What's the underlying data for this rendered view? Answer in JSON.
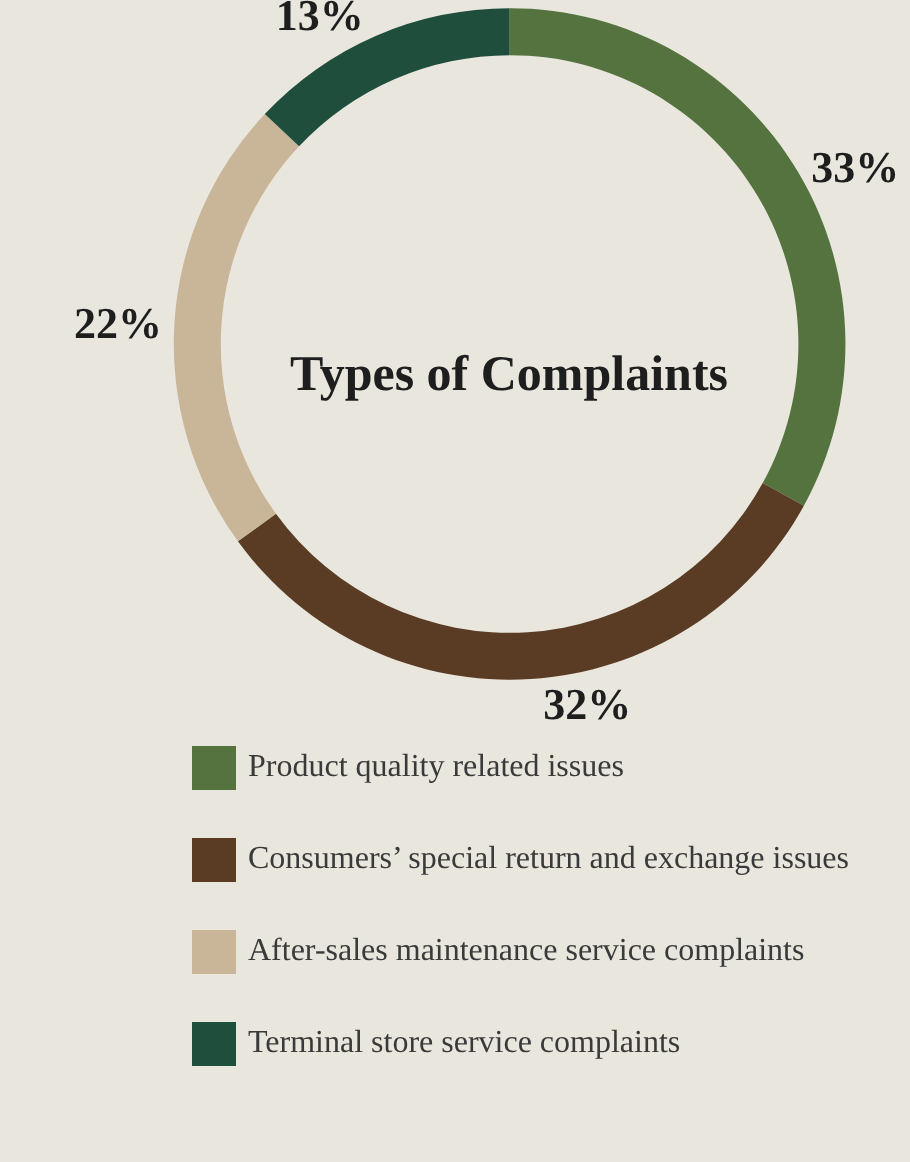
{
  "chart_data": {
    "type": "donut",
    "title": "Types of Complaints",
    "categories": [
      "Product quality related issues",
      "Consumers’ special return and exchange issues",
      "After-sales maintenance service complaints",
      "Terminal store service complaints"
    ],
    "values": [
      33,
      32,
      22,
      13
    ],
    "value_labels": [
      "33%",
      "32%",
      "22%",
      "13%"
    ],
    "colors": [
      "#55733f",
      "#5a3b24",
      "#c9b597",
      "#1f4e3d"
    ],
    "legend": "bottom"
  }
}
